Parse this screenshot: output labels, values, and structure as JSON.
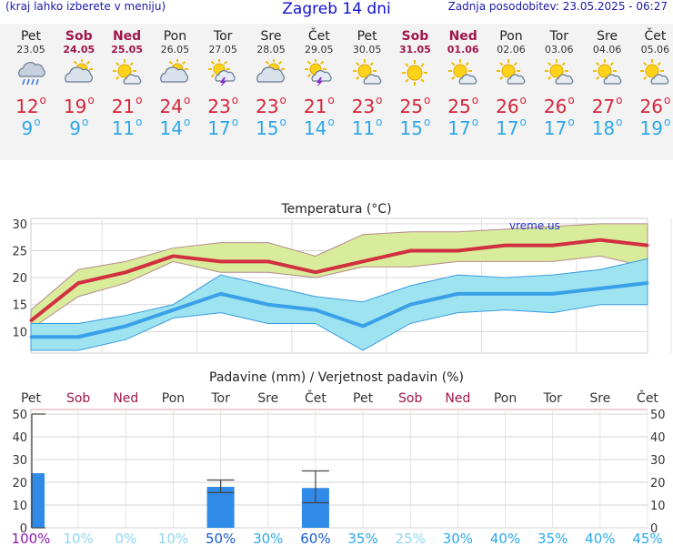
{
  "header": {
    "menu_hint": "(kraj lahko izberete v meniju)",
    "title": "Zagreb 14 dni",
    "updated": "Zadnja posodobitev: 23.05.2025 - 06:27"
  },
  "days": [
    {
      "name": "Pet",
      "date": "23.05",
      "weekend": false,
      "icon": "rain-cloud-icon",
      "tmax": "12",
      "tmin": "9"
    },
    {
      "name": "Sob",
      "date": "24.05",
      "weekend": true,
      "icon": "partly-cloudy-icon",
      "tmax": "19",
      "tmin": "9"
    },
    {
      "name": "Ned",
      "date": "25.05",
      "weekend": true,
      "icon": "sun-cloud-icon",
      "tmax": "21",
      "tmin": "11"
    },
    {
      "name": "Pon",
      "date": "26.05",
      "weekend": false,
      "icon": "partly-cloudy-icon",
      "tmax": "24",
      "tmin": "14"
    },
    {
      "name": "Tor",
      "date": "27.05",
      "weekend": false,
      "icon": "thunderstorm-sun-icon",
      "tmax": "23",
      "tmin": "17"
    },
    {
      "name": "Sre",
      "date": "28.05",
      "weekend": false,
      "icon": "partly-cloudy-icon",
      "tmax": "23",
      "tmin": "15"
    },
    {
      "name": "Čet",
      "date": "29.05",
      "weekend": false,
      "icon": "thunderstorm-sun-icon",
      "tmax": "21",
      "tmin": "14"
    },
    {
      "name": "Pet",
      "date": "30.05",
      "weekend": false,
      "icon": "sun-cloud-icon",
      "tmax": "23",
      "tmin": "11"
    },
    {
      "name": "Sob",
      "date": "31.05",
      "weekend": true,
      "icon": "sun-icon",
      "tmax": "25",
      "tmin": "15"
    },
    {
      "name": "Ned",
      "date": "01.06",
      "weekend": true,
      "icon": "sun-cloud-icon",
      "tmax": "25",
      "tmin": "17"
    },
    {
      "name": "Pon",
      "date": "02.06",
      "weekend": false,
      "icon": "sun-cloud-icon",
      "tmax": "26",
      "tmin": "17"
    },
    {
      "name": "Tor",
      "date": "03.06",
      "weekend": false,
      "icon": "sun-cloud-icon",
      "tmax": "26",
      "tmin": "17"
    },
    {
      "name": "Sre",
      "date": "04.06",
      "weekend": false,
      "icon": "sun-cloud-icon",
      "tmax": "27",
      "tmin": "18"
    },
    {
      "name": "Čet",
      "date": "05.06",
      "weekend": false,
      "icon": "sun-cloud-icon",
      "tmax": "26",
      "tmin": "19"
    }
  ],
  "chart_data": [
    {
      "type": "line",
      "title": "Temperatura (°C)",
      "watermark": "vreme.us",
      "ylim": [
        6,
        31
      ],
      "yticks": [
        10,
        15,
        20,
        25,
        30
      ],
      "grid": true,
      "x": [
        "23.05",
        "24.05",
        "25.05",
        "26.05",
        "27.05",
        "28.05",
        "29.05",
        "30.05",
        "31.05",
        "01.06",
        "02.06",
        "03.06",
        "04.06",
        "05.06"
      ],
      "series": [
        {
          "values": [
            12,
            19,
            21,
            24,
            23,
            23,
            21,
            23,
            25,
            25,
            26,
            26,
            27,
            26
          ],
          "color": "#d03040"
        },
        {
          "values": [
            9,
            9,
            11,
            14,
            17,
            15,
            14,
            11,
            15,
            17,
            17,
            17,
            18,
            19
          ],
          "color": "#3aa0e8"
        }
      ],
      "bands": [
        {
          "lower": [
            10.5,
            16.5,
            19,
            23,
            21,
            21,
            20,
            22,
            22,
            23,
            23,
            23,
            24,
            22
          ],
          "upper": [
            14,
            21.5,
            23,
            25.5,
            26.5,
            26.5,
            24,
            28,
            28.5,
            28.5,
            29,
            29.5,
            30,
            30
          ],
          "color": "#d8ec9c"
        },
        {
          "lower": [
            6.5,
            6.5,
            8.5,
            12.5,
            13.5,
            11.5,
            11.5,
            6.5,
            11.5,
            13.5,
            14,
            13.5,
            15,
            15
          ],
          "upper": [
            11.5,
            11.5,
            13,
            15,
            20.5,
            18.5,
            16.5,
            15.5,
            18.5,
            20.5,
            20,
            20.5,
            21.5,
            23.5
          ],
          "color": "#9ee4f0"
        }
      ]
    },
    {
      "type": "bar",
      "title": "Padavine (mm) / Verjetnost padavin (%)",
      "ylim": [
        0,
        52
      ],
      "yticks": [
        0,
        10,
        20,
        30,
        40,
        50
      ],
      "grid": true,
      "categories": [
        "Pet",
        "Sob",
        "Ned",
        "Pon",
        "Tor",
        "Sre",
        "Čet",
        "Pet",
        "Sob",
        "Ned",
        "Pon",
        "Tor",
        "Sre",
        "Čet"
      ],
      "weekend": [
        false,
        true,
        true,
        false,
        false,
        false,
        false,
        false,
        true,
        true,
        false,
        false,
        false,
        false
      ],
      "values": [
        24,
        0,
        0,
        0,
        18,
        0,
        17.5,
        0,
        0,
        0,
        0,
        0,
        0,
        0
      ],
      "error_bars": [
        {
          "index": 0,
          "low": 0,
          "high": 50
        },
        {
          "index": 4,
          "low": 15.5,
          "high": 21
        },
        {
          "index": 6,
          "low": 11,
          "high": 25
        }
      ],
      "probabilities": [
        "100%",
        "10%",
        "0%",
        "10%",
        "50%",
        "30%",
        "60%",
        "35%",
        "25%",
        "30%",
        "40%",
        "35%",
        "40%",
        "45%"
      ],
      "bar_color": "#2f8ae8"
    }
  ]
}
